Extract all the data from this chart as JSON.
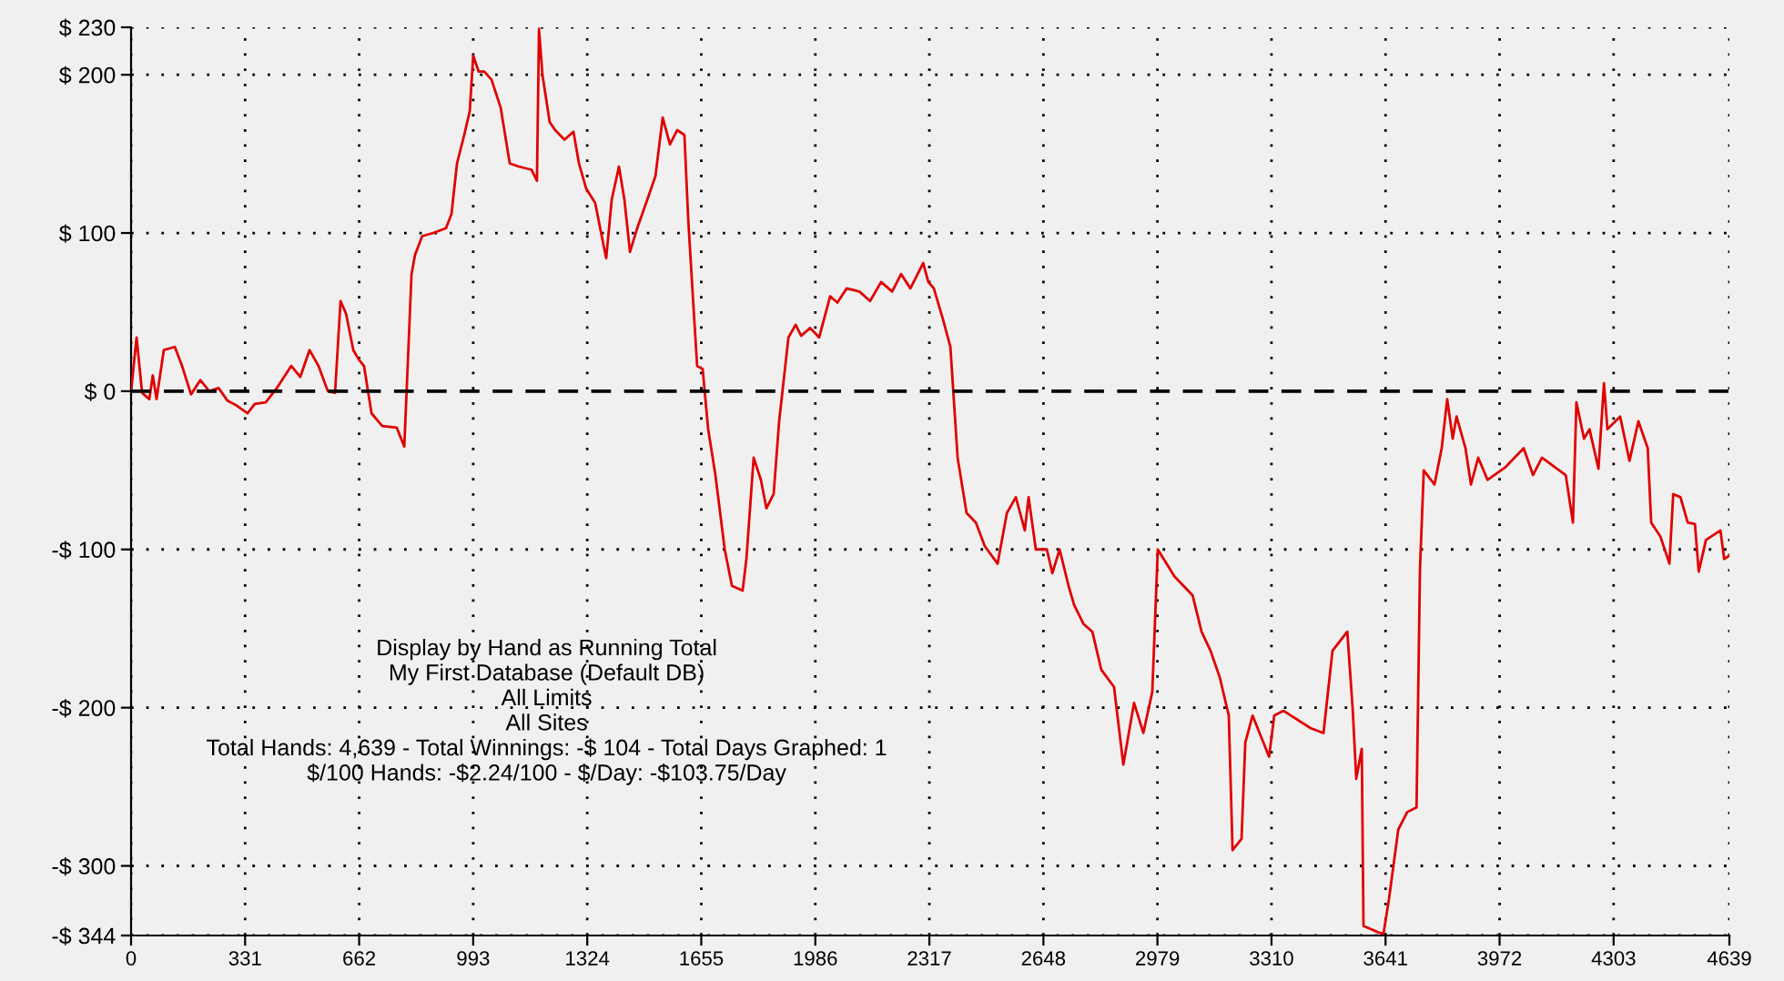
{
  "chart_data": {
    "type": "line",
    "x": [
      0,
      16,
      32,
      53,
      63,
      74,
      95,
      127,
      148,
      174,
      201,
      227,
      254,
      280,
      306,
      338,
      359,
      391,
      423,
      465,
      491,
      518,
      544,
      571,
      592,
      608,
      624,
      645,
      661,
      676,
      698,
      729,
      771,
      793,
      814,
      824,
      845,
      877,
      914,
      930,
      946,
      967,
      983,
      993,
      1009,
      1025,
      1046,
      1073,
      1099,
      1125,
      1162,
      1178,
      1184,
      1194,
      1215,
      1231,
      1258,
      1284,
      1300,
      1321,
      1347,
      1379,
      1395,
      1416,
      1432,
      1448,
      1469,
      1495,
      1522,
      1543,
      1564,
      1585,
      1606,
      1617,
      1633,
      1643,
      1659,
      1675,
      1696,
      1723,
      1744,
      1775,
      1786,
      1807,
      1828,
      1844,
      1865,
      1881,
      1908,
      1929,
      1945,
      1971,
      1997,
      2029,
      2050,
      2077,
      2114,
      2145,
      2177,
      2209,
      2235,
      2262,
      2299,
      2314,
      2330,
      2357,
      2378,
      2399,
      2425,
      2452,
      2478,
      2515,
      2542,
      2568,
      2594,
      2605,
      2626,
      2658,
      2674,
      2695,
      2721,
      2737,
      2764,
      2790,
      2816,
      2853,
      2880,
      2911,
      2938,
      2964,
      2980,
      3028,
      3081,
      3107,
      3133,
      3160,
      3186,
      3197,
      3223,
      3234,
      3255,
      3303,
      3318,
      3345,
      3424,
      3461,
      3487,
      3530,
      3546,
      3556,
      3572,
      3577,
      3620,
      3635,
      3651,
      3678,
      3704,
      3731,
      3741,
      3752,
      3783,
      3804,
      3820,
      3836,
      3847,
      3873,
      3889,
      3910,
      3937,
      3989,
      4042,
      4069,
      4095,
      4164,
      4185,
      4195,
      4217,
      4233,
      4259,
      4275,
      4285,
      4322,
      4349,
      4375,
      4402,
      4412,
      4439,
      4465,
      4476,
      4497,
      4518,
      4539,
      4550,
      4571,
      4613,
      4624,
      4639
    ],
    "series": [
      {
        "color": "#e00000",
        "values": [
          0,
          34,
          -1,
          -5,
          10,
          -5,
          26,
          28,
          16,
          -2,
          7,
          0,
          2,
          -6,
          -9,
          -14,
          -8,
          -7,
          2,
          16,
          9,
          26,
          16,
          0,
          -1,
          57,
          49,
          26,
          20,
          16,
          -14,
          -22,
          -23,
          -35,
          74,
          86,
          98,
          100,
          103,
          112,
          144,
          162,
          177,
          212,
          202,
          202,
          197,
          179,
          144,
          142,
          140,
          133,
          229,
          200,
          170,
          165,
          159,
          164,
          144,
          128,
          119,
          84,
          121,
          142,
          121,
          88,
          103,
          119,
          136,
          173,
          156,
          165,
          162,
          109,
          51,
          16,
          14,
          -24,
          -53,
          -100,
          -123,
          -126,
          -106,
          -42,
          -56,
          -74,
          -65,
          -19,
          34,
          42,
          35,
          40,
          34,
          60,
          56,
          65,
          63,
          57,
          69,
          63,
          74,
          65,
          81,
          69,
          65,
          45,
          28,
          -42,
          -77,
          -83,
          -98,
          -109,
          -77,
          -67,
          -88,
          -67,
          -100,
          -100,
          -115,
          -100,
          -123,
          -135,
          -147,
          -152,
          -176,
          -187,
          -236,
          -197,
          -216,
          -190,
          -100,
          -117,
          -129,
          -152,
          -164,
          -181,
          -205,
          -290,
          -283,
          -222,
          -205,
          -231,
          -205,
          -202,
          -213,
          -216,
          -164,
          -152,
          -202,
          -245,
          -226,
          -338,
          -342,
          -343,
          -321,
          -277,
          -266,
          -263,
          -112,
          -50,
          -59,
          -36,
          -5,
          -30,
          -16,
          -36,
          -59,
          -42,
          -56,
          -48,
          -36,
          -53,
          -42,
          -53,
          -83,
          -7,
          -30,
          -24,
          -49,
          5,
          -24,
          -16,
          -44,
          -19,
          -36,
          -83,
          -92,
          -109,
          -65,
          -67,
          -83,
          -84,
          -114,
          -94,
          -88,
          -106,
          -104
        ]
      }
    ],
    "xlim": [
      0,
      4639
    ],
    "ylim": [
      -344,
      230
    ],
    "xticks": [
      0,
      331,
      662,
      993,
      1324,
      1655,
      1986,
      2317,
      2648,
      2979,
      3310,
      3641,
      3972,
      4303,
      4639
    ],
    "yticks": [
      {
        "value": 230,
        "label": "$ 230"
      },
      {
        "value": 200,
        "label": "$ 200"
      },
      {
        "value": 100,
        "label": "$ 100"
      },
      {
        "value": 0,
        "label": "$ 0"
      },
      {
        "value": -100,
        "label": "-$ 100"
      },
      {
        "value": -200,
        "label": "-$ 200"
      },
      {
        "value": -300,
        "label": "-$ 300"
      },
      {
        "value": -344,
        "label": "-$ 344"
      }
    ],
    "grid": true,
    "legend": false,
    "line_style": "solid",
    "ref_lines": [
      {
        "axis": "y",
        "value": 0,
        "color": "#000000",
        "line_style": "dashed"
      }
    ],
    "annotations": [
      "Display by Hand as Running Total",
      "My First Database (Default DB)",
      "All Limits",
      "All Sites",
      "Total Hands: 4,639 - Total Winnings: -$ 104 - Total Days Graphed: 1",
      "$/100 Hands: -$2.24/100 - $/Day: -$103.75/Day"
    ]
  }
}
